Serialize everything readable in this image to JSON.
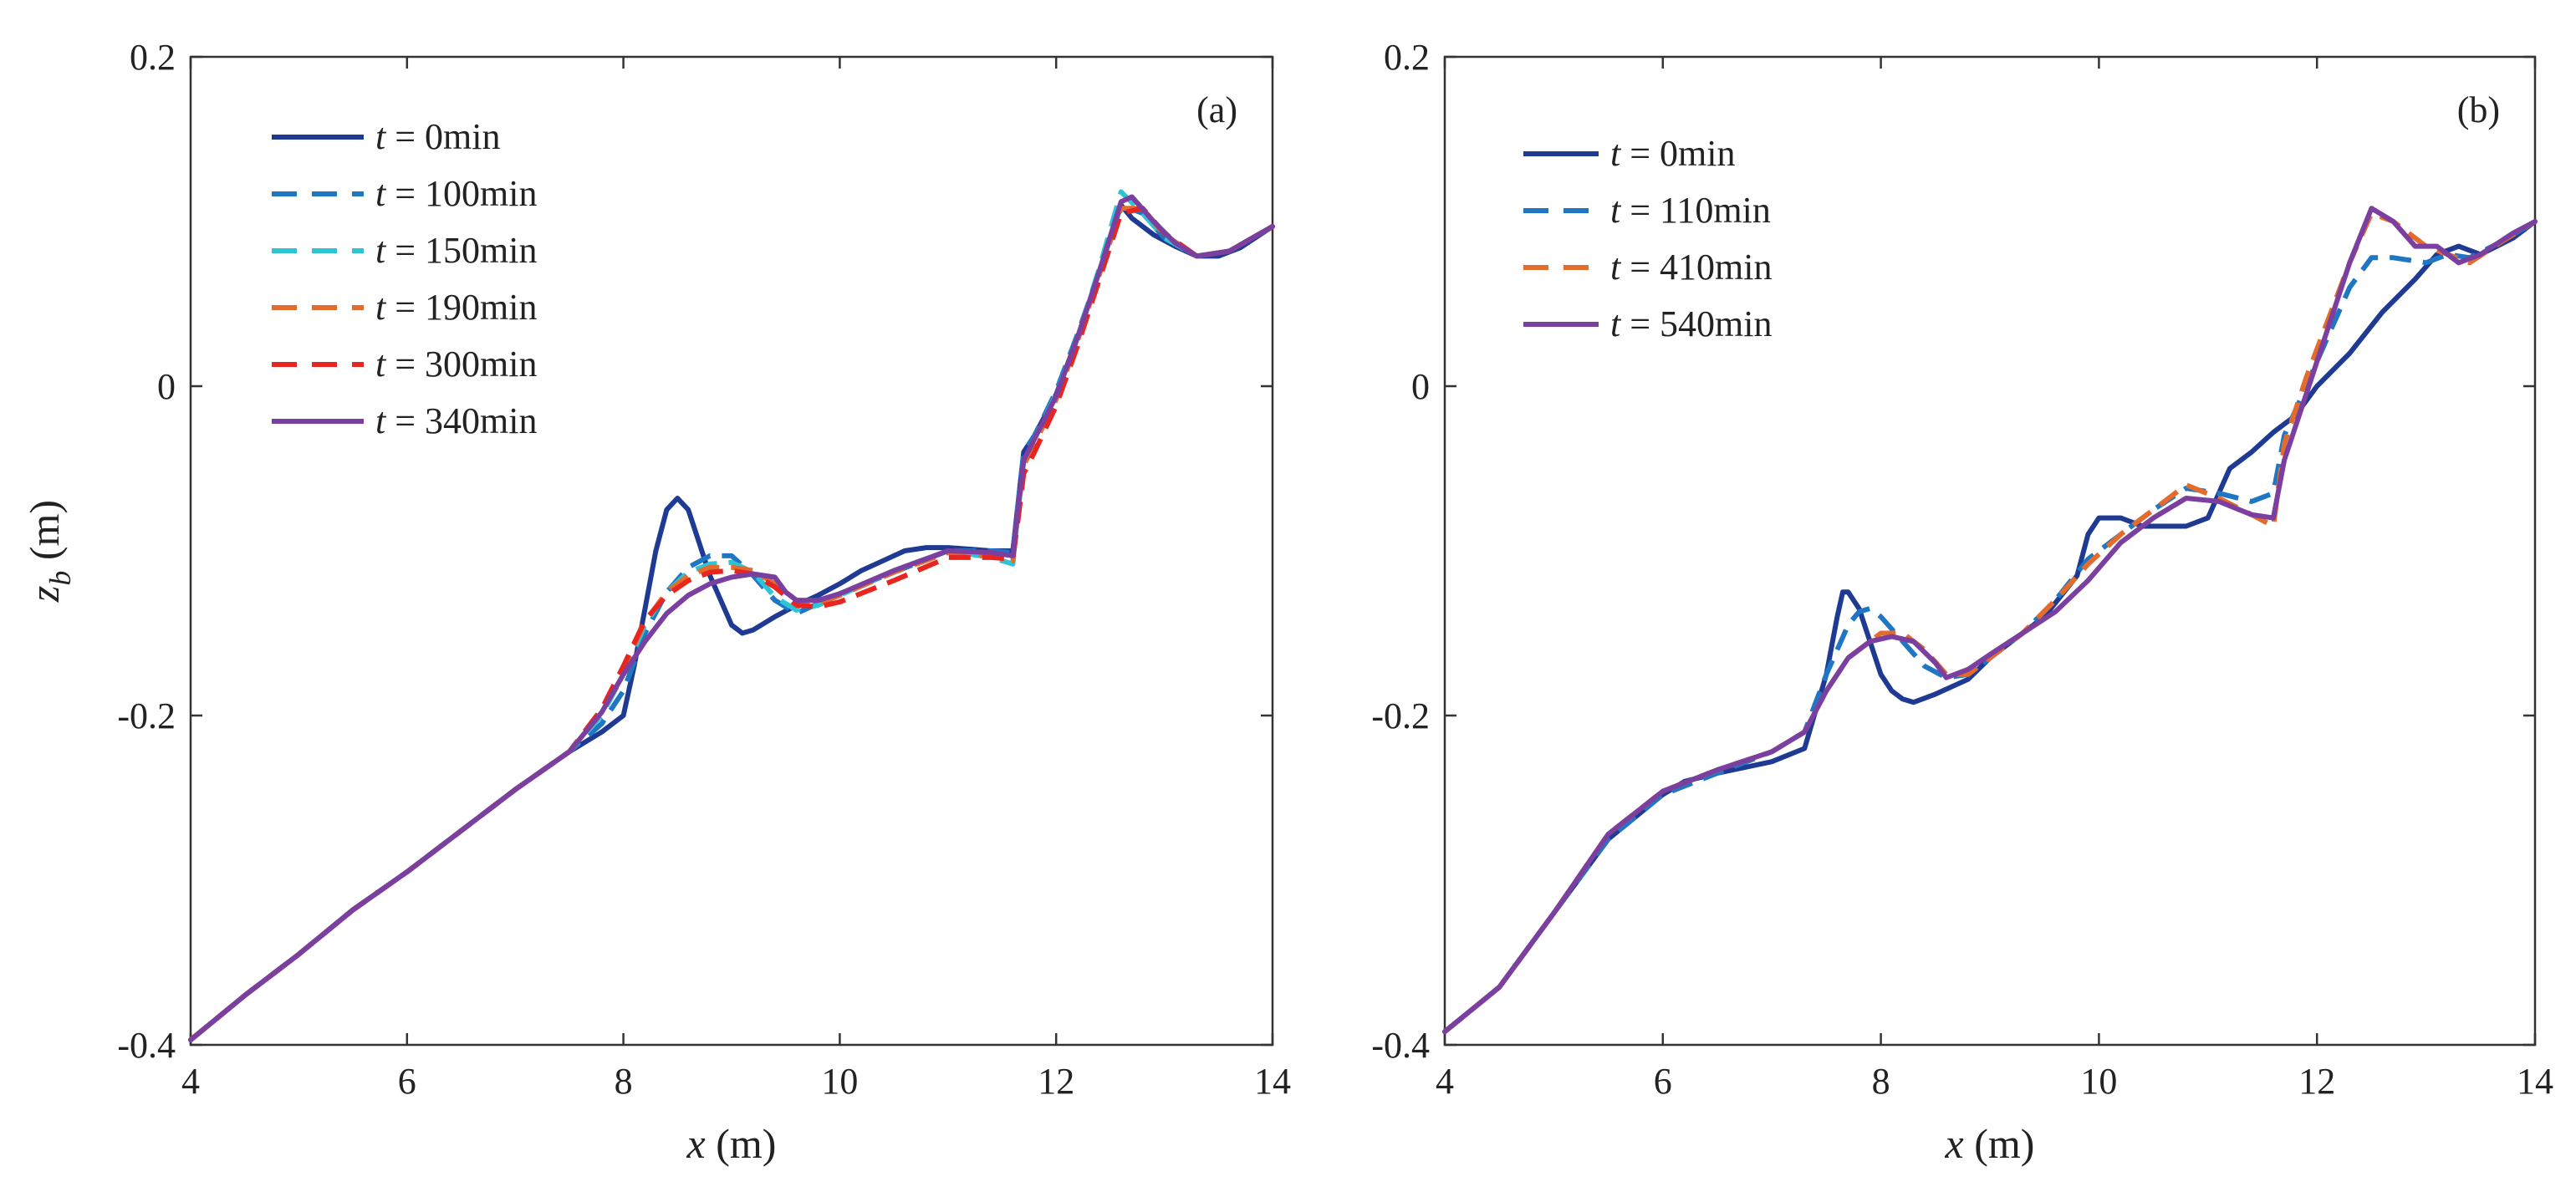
{
  "chart_data": [
    {
      "type": "line",
      "panel_label": "(a)",
      "xlabel_var": "x",
      "xlabel_unit": " (m)",
      "ylabel_var": "z",
      "ylabel_sub": "b",
      "ylabel_unit": " (m)",
      "xlim": [
        4,
        14
      ],
      "ylim": [
        -0.4,
        0.2
      ],
      "xticks": [
        4,
        6,
        8,
        10,
        12,
        14
      ],
      "xtick_labels": [
        "4",
        "6",
        "8",
        "10",
        "12",
        "14"
      ],
      "yticks": [
        -0.4,
        -0.2,
        0,
        0.2
      ],
      "ytick_labels": [
        "-0.4",
        "-0.2",
        "0",
        "0.2"
      ],
      "legend_position": "top-left",
      "series": [
        {
          "t": "t",
          "eq": " = 0min",
          "color": "#1f3a93",
          "style": "solid",
          "x": [
            4,
            4.5,
            5,
            5.5,
            6,
            6.5,
            7,
            7.5,
            7.8,
            8.0,
            8.1,
            8.2,
            8.3,
            8.4,
            8.5,
            8.6,
            8.7,
            8.8,
            9.0,
            9.1,
            9.2,
            9.4,
            9.6,
            9.8,
            10.0,
            10.2,
            10.4,
            10.6,
            10.8,
            11.0,
            11.2,
            11.4,
            11.6,
            11.65,
            11.7,
            11.8,
            12.0,
            12.2,
            12.4,
            12.6,
            12.7,
            12.9,
            13.1,
            13.3,
            13.5,
            13.7,
            14
          ],
          "y": [
            -0.397,
            -0.37,
            -0.345,
            -0.318,
            -0.295,
            -0.27,
            -0.245,
            -0.222,
            -0.21,
            -0.2,
            -0.17,
            -0.135,
            -0.1,
            -0.075,
            -0.068,
            -0.075,
            -0.095,
            -0.115,
            -0.145,
            -0.15,
            -0.148,
            -0.14,
            -0.133,
            -0.127,
            -0.12,
            -0.112,
            -0.106,
            -0.1,
            -0.098,
            -0.098,
            -0.099,
            -0.1,
            -0.1,
            -0.07,
            -0.04,
            -0.03,
            -0.005,
            0.03,
            0.07,
            0.11,
            0.102,
            0.092,
            0.085,
            0.079,
            0.079,
            0.084,
            0.097
          ]
        },
        {
          "t": "t",
          "eq": " = 100min",
          "color": "#1f77c4",
          "style": "dashed",
          "x": [
            4,
            4.5,
            5,
            5.5,
            6,
            6.5,
            7,
            7.5,
            7.8,
            8.0,
            8.2,
            8.4,
            8.6,
            8.8,
            9.0,
            9.2,
            9.4,
            9.6,
            9.8,
            10.0,
            10.5,
            11.0,
            11.4,
            11.6,
            11.65,
            11.7,
            11.8,
            12.0,
            12.2,
            12.4,
            12.6,
            12.8,
            13.0,
            13.3,
            13.6,
            14
          ],
          "y": [
            -0.397,
            -0.37,
            -0.345,
            -0.318,
            -0.295,
            -0.27,
            -0.245,
            -0.222,
            -0.205,
            -0.185,
            -0.15,
            -0.125,
            -0.11,
            -0.103,
            -0.103,
            -0.115,
            -0.13,
            -0.138,
            -0.132,
            -0.126,
            -0.113,
            -0.1,
            -0.1,
            -0.101,
            -0.07,
            -0.04,
            -0.03,
            -0.003,
            0.032,
            0.07,
            0.11,
            0.105,
            0.09,
            0.079,
            0.082,
            0.097
          ]
        },
        {
          "t": "t",
          "eq": " = 150min",
          "color": "#2ec4d6",
          "style": "dashed",
          "x": [
            4,
            4.5,
            5,
            5.5,
            6,
            6.5,
            7,
            7.5,
            7.8,
            8.0,
            8.2,
            8.4,
            8.6,
            8.8,
            9.0,
            9.2,
            9.4,
            9.6,
            9.8,
            10.0,
            10.5,
            11.0,
            11.4,
            11.6,
            11.65,
            11.7,
            11.8,
            12.0,
            12.2,
            12.4,
            12.6,
            12.8,
            13.0,
            13.3,
            13.6,
            14
          ],
          "y": [
            -0.397,
            -0.37,
            -0.345,
            -0.318,
            -0.295,
            -0.27,
            -0.245,
            -0.222,
            -0.2,
            -0.175,
            -0.145,
            -0.125,
            -0.113,
            -0.108,
            -0.107,
            -0.113,
            -0.128,
            -0.136,
            -0.133,
            -0.127,
            -0.112,
            -0.1,
            -0.104,
            -0.108,
            -0.075,
            -0.045,
            -0.032,
            -0.005,
            0.03,
            0.072,
            0.118,
            0.105,
            0.09,
            0.079,
            0.082,
            0.097
          ]
        },
        {
          "t": "t",
          "eq": " = 190min",
          "color": "#e36b2c",
          "style": "dashed",
          "x": [
            4,
            4.5,
            5,
            5.5,
            6,
            6.5,
            7,
            7.5,
            7.8,
            8.0,
            8.2,
            8.4,
            8.6,
            8.8,
            9.0,
            9.2,
            9.4,
            9.6,
            9.8,
            10.0,
            10.5,
            11.0,
            11.4,
            11.6,
            11.65,
            11.7,
            11.8,
            12.0,
            12.2,
            12.4,
            12.6,
            12.8,
            13.0,
            13.3,
            13.6,
            14
          ],
          "y": [
            -0.397,
            -0.37,
            -0.345,
            -0.318,
            -0.295,
            -0.27,
            -0.245,
            -0.222,
            -0.198,
            -0.172,
            -0.143,
            -0.125,
            -0.115,
            -0.11,
            -0.11,
            -0.112,
            -0.12,
            -0.13,
            -0.132,
            -0.127,
            -0.113,
            -0.101,
            -0.103,
            -0.106,
            -0.075,
            -0.048,
            -0.035,
            -0.008,
            0.028,
            0.068,
            0.108,
            0.108,
            0.092,
            0.079,
            0.082,
            0.097
          ]
        },
        {
          "t": "t",
          "eq": " = 300min",
          "color": "#e8261f",
          "style": "dashed",
          "x": [
            4,
            4.5,
            5,
            5.5,
            6,
            6.5,
            7,
            7.5,
            7.8,
            8.0,
            8.2,
            8.4,
            8.6,
            8.8,
            9.0,
            9.2,
            9.4,
            9.6,
            9.8,
            10.0,
            10.5,
            11.0,
            11.4,
            11.6,
            11.65,
            11.7,
            11.8,
            12.0,
            12.2,
            12.4,
            12.6,
            12.8,
            13.0,
            13.3,
            13.6,
            14
          ],
          "y": [
            -0.397,
            -0.37,
            -0.345,
            -0.318,
            -0.295,
            -0.27,
            -0.245,
            -0.222,
            -0.196,
            -0.17,
            -0.142,
            -0.127,
            -0.118,
            -0.113,
            -0.112,
            -0.114,
            -0.122,
            -0.133,
            -0.134,
            -0.131,
            -0.118,
            -0.104,
            -0.104,
            -0.105,
            -0.08,
            -0.053,
            -0.04,
            -0.012,
            0.025,
            0.065,
            0.105,
            0.108,
            0.093,
            0.079,
            0.082,
            0.097
          ]
        },
        {
          "t": "t",
          "eq": " = 340min",
          "color": "#7b3fa0",
          "style": "solid",
          "x": [
            4,
            4.5,
            5,
            5.5,
            6,
            6.5,
            7,
            7.5,
            7.8,
            8.0,
            8.2,
            8.4,
            8.6,
            8.8,
            9.0,
            9.2,
            9.4,
            9.5,
            9.6,
            9.8,
            10.0,
            10.5,
            11.0,
            11.4,
            11.6,
            11.65,
            11.7,
            11.8,
            12.0,
            12.2,
            12.4,
            12.6,
            12.7,
            12.9,
            13.1,
            13.3,
            13.6,
            14
          ],
          "y": [
            -0.397,
            -0.37,
            -0.345,
            -0.318,
            -0.295,
            -0.27,
            -0.245,
            -0.222,
            -0.198,
            -0.175,
            -0.155,
            -0.138,
            -0.127,
            -0.12,
            -0.116,
            -0.114,
            -0.116,
            -0.125,
            -0.13,
            -0.13,
            -0.126,
            -0.112,
            -0.1,
            -0.101,
            -0.103,
            -0.073,
            -0.045,
            -0.032,
            -0.006,
            0.03,
            0.07,
            0.112,
            0.115,
            0.1,
            0.087,
            0.079,
            0.082,
            0.097
          ]
        }
      ]
    },
    {
      "type": "line",
      "panel_label": "(b)",
      "xlabel_var": "x",
      "xlabel_unit": " (m)",
      "xlim": [
        4,
        14
      ],
      "ylim": [
        -0.4,
        0.2
      ],
      "xticks": [
        4,
        6,
        8,
        10,
        12,
        14
      ],
      "xtick_labels": [
        "4",
        "6",
        "8",
        "10",
        "12",
        "14"
      ],
      "yticks": [
        -0.4,
        -0.2,
        0,
        0.2
      ],
      "ytick_labels": [
        "-0.4",
        "-0.2",
        "0",
        "0.2"
      ],
      "legend_position": "top-left",
      "series": [
        {
          "t": "t",
          "eq": " = 0min",
          "color": "#1f3a93",
          "style": "solid",
          "x": [
            4,
            4.5,
            5,
            5.5,
            6,
            6.2,
            6.5,
            7,
            7.3,
            7.5,
            7.6,
            7.65,
            7.7,
            7.8,
            7.9,
            8.0,
            8.1,
            8.2,
            8.3,
            8.5,
            8.8,
            9.0,
            9.2,
            9.5,
            9.8,
            9.9,
            10.0,
            10.1,
            10.2,
            10.4,
            10.6,
            10.8,
            11.0,
            11.1,
            11.2,
            11.4,
            11.6,
            11.8,
            12.0,
            12.3,
            12.6,
            12.9,
            13.1,
            13.3,
            13.5,
            13.8,
            14
          ],
          "y": [
            -0.392,
            -0.365,
            -0.32,
            -0.275,
            -0.248,
            -0.24,
            -0.235,
            -0.228,
            -0.22,
            -0.175,
            -0.14,
            -0.125,
            -0.125,
            -0.135,
            -0.155,
            -0.175,
            -0.185,
            -0.19,
            -0.192,
            -0.187,
            -0.178,
            -0.165,
            -0.155,
            -0.14,
            -0.115,
            -0.09,
            -0.08,
            -0.08,
            -0.08,
            -0.085,
            -0.085,
            -0.085,
            -0.08,
            -0.065,
            -0.05,
            -0.04,
            -0.028,
            -0.018,
            0.0,
            0.02,
            0.045,
            0.065,
            0.08,
            0.085,
            0.08,
            0.09,
            0.1
          ]
        },
        {
          "t": "t",
          "eq": " = 110min",
          "color": "#1f77c4",
          "style": "dashed",
          "x": [
            4,
            4.5,
            5,
            5.5,
            6,
            6.5,
            7,
            7.3,
            7.5,
            7.7,
            7.8,
            7.9,
            8.0,
            8.2,
            8.4,
            8.6,
            8.8,
            9.0,
            9.3,
            9.6,
            9.9,
            10.2,
            10.5,
            10.8,
            11.1,
            11.4,
            11.6,
            11.7,
            11.9,
            12.1,
            12.3,
            12.5,
            12.7,
            13.0,
            13.2,
            13.4,
            13.7,
            14
          ],
          "y": [
            -0.392,
            -0.365,
            -0.32,
            -0.275,
            -0.248,
            -0.235,
            -0.222,
            -0.21,
            -0.175,
            -0.145,
            -0.137,
            -0.135,
            -0.14,
            -0.155,
            -0.17,
            -0.177,
            -0.175,
            -0.165,
            -0.15,
            -0.13,
            -0.105,
            -0.09,
            -0.075,
            -0.062,
            -0.065,
            -0.07,
            -0.065,
            -0.03,
            0.0,
            0.03,
            0.06,
            0.078,
            0.078,
            0.075,
            0.08,
            0.078,
            0.088,
            0.1
          ]
        },
        {
          "t": "t",
          "eq": " = 410min",
          "color": "#e36b2c",
          "style": "dashed",
          "x": [
            4,
            4.5,
            5,
            5.5,
            6,
            6.5,
            7,
            7.3,
            7.5,
            7.7,
            7.9,
            8.0,
            8.2,
            8.4,
            8.6,
            8.8,
            9.0,
            9.3,
            9.6,
            9.9,
            10.2,
            10.5,
            10.8,
            11.1,
            11.4,
            11.6,
            11.7,
            11.9,
            12.1,
            12.3,
            12.5,
            12.7,
            13.0,
            13.2,
            13.4,
            13.7,
            14
          ],
          "y": [
            -0.392,
            -0.365,
            -0.32,
            -0.272,
            -0.246,
            -0.233,
            -0.222,
            -0.21,
            -0.185,
            -0.165,
            -0.155,
            -0.15,
            -0.15,
            -0.16,
            -0.175,
            -0.175,
            -0.165,
            -0.15,
            -0.13,
            -0.108,
            -0.09,
            -0.075,
            -0.06,
            -0.068,
            -0.078,
            -0.085,
            -0.035,
            0.005,
            0.04,
            0.075,
            0.105,
            0.1,
            0.085,
            0.08,
            0.075,
            0.088,
            0.1
          ]
        },
        {
          "t": "t",
          "eq": " = 540min",
          "color": "#7b3fa0",
          "style": "solid",
          "x": [
            4,
            4.5,
            5,
            5.5,
            6,
            6.5,
            7,
            7.3,
            7.5,
            7.7,
            7.9,
            8.1,
            8.3,
            8.5,
            8.6,
            8.8,
            9.0,
            9.3,
            9.6,
            9.9,
            10.2,
            10.5,
            10.8,
            11.1,
            11.4,
            11.6,
            11.7,
            11.9,
            12.1,
            12.3,
            12.5,
            12.7,
            12.9,
            13.1,
            13.3,
            13.5,
            13.8,
            14
          ],
          "y": [
            -0.392,
            -0.365,
            -0.32,
            -0.272,
            -0.246,
            -0.233,
            -0.222,
            -0.21,
            -0.185,
            -0.165,
            -0.155,
            -0.152,
            -0.155,
            -0.168,
            -0.177,
            -0.172,
            -0.163,
            -0.15,
            -0.137,
            -0.118,
            -0.095,
            -0.08,
            -0.068,
            -0.07,
            -0.078,
            -0.08,
            -0.045,
            -0.005,
            0.035,
            0.075,
            0.108,
            0.1,
            0.085,
            0.085,
            0.075,
            0.08,
            0.093,
            0.1
          ]
        }
      ]
    }
  ]
}
